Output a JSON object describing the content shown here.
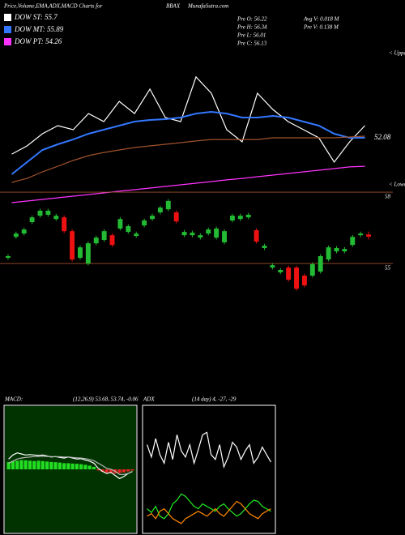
{
  "header": {
    "title": "Price,Volume,EMA,ADX,MACD Charts for",
    "symbol": "BBAX",
    "site": "MunafaSutra.com",
    "legend": [
      {
        "text": "DOW ST: 55.7",
        "color": "#ffffff"
      },
      {
        "text": "DOW MT: 55.89",
        "color": "#3377ff"
      },
      {
        "text": "DOW PT: 54.26",
        "color": "#ff33ff"
      }
    ],
    "info": [
      "Pre O: 56.22",
      "Pre H: 56.34",
      "Pre L: 56.01",
      "Pre C: 56.13"
    ],
    "volume": [
      "Avg V: 0.018 M",
      "Pre V: 0.138 M"
    ]
  },
  "chart_data": [
    {
      "type": "line",
      "annotations": [
        "< Upper",
        "52.08"
      ],
      "ylim": [
        44.92,
        60
      ],
      "series": [
        {
          "color": "#ffffff",
          "values": [
            50.47,
            51.27,
            52.46,
            53.25,
            52.86,
            54.44,
            53.65,
            55.63,
            54.44,
            56.83,
            54.05,
            53.65,
            58.02,
            56.43,
            52.86,
            51.67,
            56.43,
            54.84,
            53.65,
            52.86,
            52.06,
            49.68,
            51.67,
            53.25
          ]
        },
        {
          "color": "#3377ff",
          "values": [
            48.49,
            49.68,
            50.87,
            51.43,
            51.9,
            52.46,
            52.86,
            53.25,
            53.65,
            53.81,
            53.89,
            54.05,
            54.44,
            54.6,
            54.44,
            54.05,
            54.05,
            54.21,
            54.05,
            53.65,
            53.25,
            52.46,
            52.06,
            52.06
          ]
        },
        {
          "color": "#a0522d",
          "values": [
            47.7,
            48.09,
            48.73,
            49.28,
            49.84,
            50.32,
            50.63,
            50.87,
            51.11,
            51.27,
            51.43,
            51.59,
            51.75,
            51.9,
            51.9,
            51.9,
            51.9,
            52.06,
            52.06,
            52.06,
            52.06,
            52.06,
            52.14,
            52.22
          ]
        },
        {
          "color": "#ff33ff",
          "values": [
            45.71,
            45.87,
            46.03,
            46.19,
            46.35,
            46.51,
            46.67,
            46.83,
            46.98,
            47.14,
            47.3,
            47.46,
            47.62,
            47.78,
            47.94,
            48.09,
            48.25,
            48.41,
            48.57,
            48.73,
            48.89,
            49.05,
            49.21,
            49.28
          ]
        }
      ]
    },
    {
      "type": "candlestick",
      "annotations": [
        "< Lower"
      ],
      "ylim": [
        53.64,
        58.24
      ],
      "yticks": [
        55,
        58
      ],
      "grid": true,
      "up_color": "#22bb33",
      "down_color": "#ee1111",
      "grid_color": "#a0522d",
      "open": [
        55.24,
        56.12,
        56.26,
        56.74,
        57.01,
        57.05,
        56.87,
        56.94,
        56.36,
        55.24,
        55.0,
        55.85,
        55.99,
        56.19,
        56.47,
        56.33,
        56.16,
        56.6,
        56.87,
        57.15,
        57.28,
        57.15,
        56.19,
        56.19,
        56.09,
        56.26,
        56.09,
        55.89,
        56.81,
        56.87,
        56.94,
        56.4,
        55.65,
        54.83,
        54.63,
        54.83,
        54.83,
        54.49,
        54.49,
        54.66,
        55.17,
        55.51,
        55.51,
        55.78,
        56.19,
        56.22
      ],
      "close": [
        55.31,
        56.26,
        56.43,
        56.94,
        57.22,
        57.22,
        57.01,
        56.36,
        55.17,
        55.68,
        55.85,
        56.09,
        56.36,
        55.78,
        56.87,
        56.57,
        56.26,
        56.81,
        57.01,
        57.35,
        57.63,
        56.77,
        56.33,
        56.3,
        56.19,
        56.43,
        56.47,
        56.36,
        57.01,
        57.01,
        57.05,
        55.92,
        55.75,
        54.93,
        54.73,
        54.32,
        53.94,
        54.08,
        54.97,
        55.31,
        55.68,
        55.65,
        55.61,
        56.12,
        56.26,
        56.13
      ],
      "high": [
        55.39,
        56.34,
        56.51,
        57.02,
        57.3,
        57.3,
        57.09,
        57.02,
        56.44,
        55.76,
        55.93,
        56.17,
        56.44,
        56.27,
        56.95,
        56.65,
        56.34,
        56.89,
        57.09,
        57.43,
        57.71,
        57.23,
        56.41,
        56.38,
        56.27,
        56.51,
        56.55,
        56.44,
        57.09,
        57.09,
        57.13,
        56.48,
        55.83,
        55.01,
        54.81,
        54.91,
        54.91,
        54.57,
        55.05,
        55.39,
        55.76,
        55.73,
        55.69,
        56.2,
        56.34,
        56.34
      ],
      "low": [
        55.16,
        56.04,
        56.18,
        56.66,
        56.93,
        56.97,
        56.79,
        56.28,
        55.09,
        55.16,
        54.92,
        55.77,
        55.91,
        55.7,
        56.39,
        56.25,
        56.08,
        56.52,
        56.79,
        57.07,
        57.2,
        56.69,
        56.11,
        56.11,
        56.01,
        56.18,
        56.01,
        55.81,
        56.73,
        56.79,
        56.86,
        55.84,
        55.57,
        54.75,
        54.55,
        54.24,
        53.86,
        54.0,
        54.41,
        54.58,
        55.09,
        55.43,
        55.43,
        55.7,
        56.11,
        56.01
      ]
    },
    {
      "type": "macd",
      "title": "MACD:",
      "subtitle": "(12,26,9) 53.68, 53.74, -0.06",
      "ylim": [
        -3,
        3
      ],
      "background": "#003300",
      "up_color": "#22dd22",
      "down_color": "#ee2222",
      "histogram": [
        0.35,
        0.4,
        0.42,
        0.45,
        0.44,
        0.42,
        0.4,
        0.42,
        0.4,
        0.38,
        0.36,
        0.35,
        0.33,
        0.3,
        0.3,
        0.28,
        0.27,
        0.25,
        0.22,
        0.18,
        0.12,
        -0.05,
        -0.12,
        -0.15,
        -0.18,
        -0.2,
        -0.18,
        -0.15,
        -0.1,
        -0.06
      ],
      "series": [
        {
          "color": "#ffffff",
          "values": [
            0.5,
            0.7,
            0.8,
            0.75,
            0.7,
            0.72,
            0.7,
            0.68,
            0.7,
            0.65,
            0.6,
            0.62,
            0.58,
            0.55,
            0.6,
            0.55,
            0.5,
            0.52,
            0.45,
            0.4,
            0.3,
            0.05,
            -0.1,
            -0.2,
            -0.15,
            -0.3,
            -0.45,
            -0.35,
            -0.2,
            -0.1
          ]
        },
        {
          "color": "#bbbbbb",
          "values": [
            0.3,
            0.4,
            0.5,
            0.55,
            0.58,
            0.6,
            0.62,
            0.63,
            0.64,
            0.63,
            0.62,
            0.62,
            0.61,
            0.6,
            0.6,
            0.58,
            0.56,
            0.55,
            0.52,
            0.48,
            0.42,
            0.3,
            0.18,
            0.05,
            0,
            -0.1,
            -0.25,
            -0.25,
            -0.2,
            -0.12
          ]
        }
      ]
    },
    {
      "type": "line",
      "title": "ADX",
      "subtitle": "(14 day) 4, -27, -29",
      "ylim": [
        0,
        100
      ],
      "background": "#000000",
      "series": [
        {
          "color": "#ffffff",
          "values": [
            70,
            60,
            75,
            62,
            55,
            72,
            58,
            78,
            65,
            60,
            70,
            55,
            66,
            78,
            80,
            62,
            58,
            70,
            52,
            60,
            72,
            68,
            58,
            65,
            70,
            55,
            60,
            68,
            62,
            56
          ]
        },
        {
          "color": "#22ee22",
          "values": [
            18,
            15,
            20,
            12,
            10,
            14,
            22,
            25,
            30,
            28,
            24,
            20,
            18,
            22,
            20,
            18,
            16,
            20,
            22,
            18,
            15,
            12,
            14,
            18,
            22,
            25,
            24,
            20,
            18,
            16
          ]
        },
        {
          "color": "#ff8800",
          "values": [
            12,
            14,
            10,
            16,
            18,
            14,
            10,
            8,
            6,
            10,
            12,
            14,
            16,
            14,
            12,
            15,
            18,
            14,
            12,
            16,
            20,
            24,
            22,
            18,
            14,
            12,
            10,
            14,
            16,
            18
          ]
        }
      ]
    }
  ]
}
